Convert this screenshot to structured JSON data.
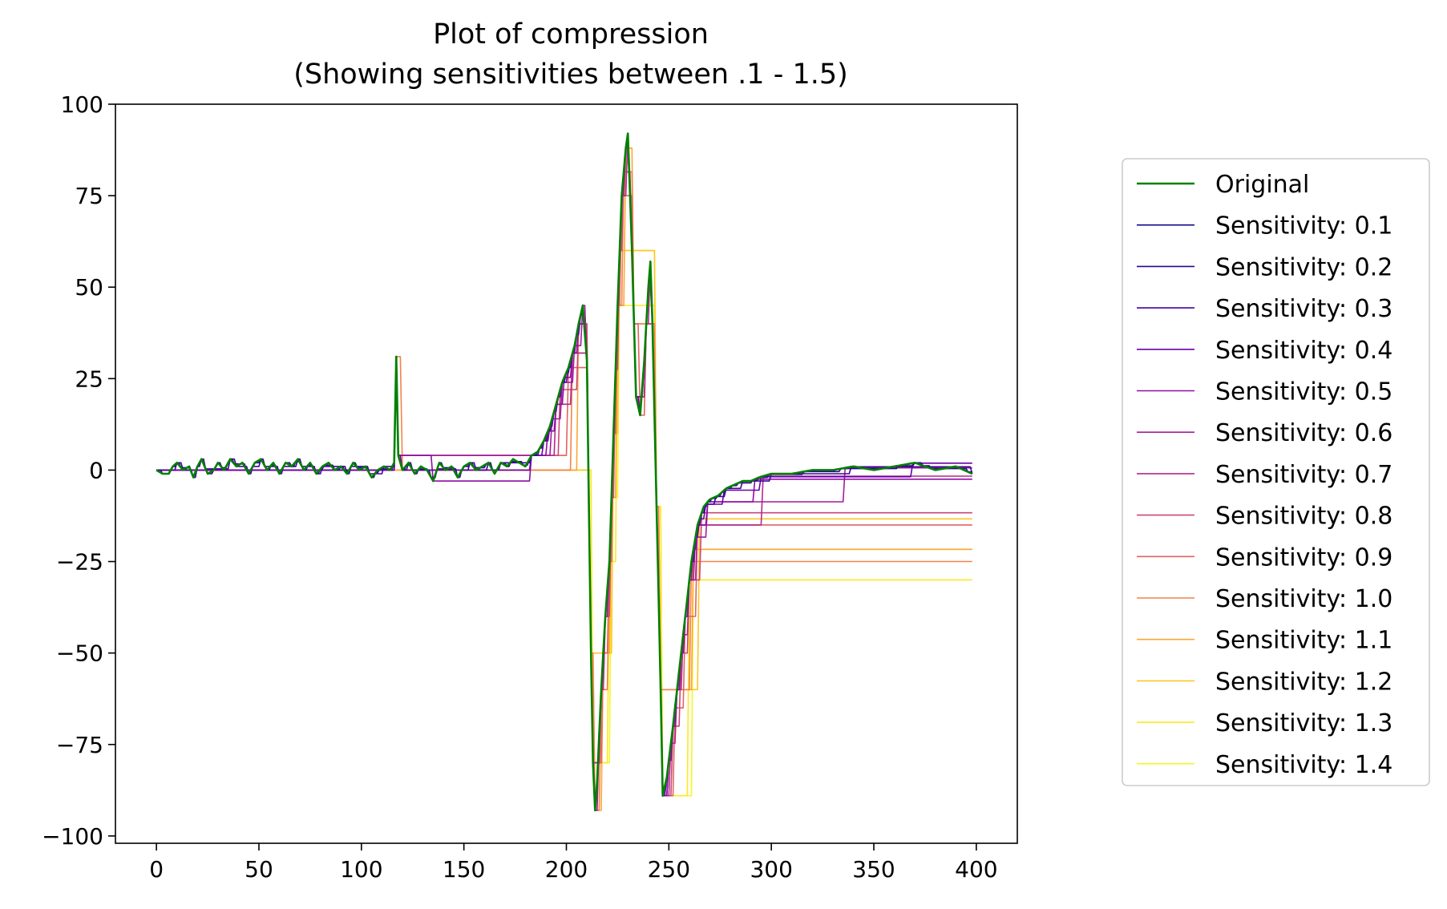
{
  "chart_data": {
    "type": "line",
    "title": "Plot of compression",
    "subtitle": "(Showing sensitivities between .1 - 1.5)",
    "xlabel": "",
    "ylabel": "",
    "xlim": [
      -20,
      420
    ],
    "ylim": [
      -102,
      100
    ],
    "xticks": [
      0,
      50,
      100,
      150,
      200,
      250,
      300,
      350,
      400
    ],
    "yticks": [
      100,
      75,
      50,
      25,
      0,
      -25,
      -50,
      -75,
      -100
    ],
    "ytick_labels": [
      "100",
      "75",
      "50",
      "25",
      "0",
      "−25",
      "−50",
      "−75",
      "−100"
    ],
    "grid": false,
    "legend_position": "outside-right",
    "original_key_points": [
      [
        0,
        0
      ],
      [
        3,
        -1
      ],
      [
        6,
        -1
      ],
      [
        8,
        1
      ],
      [
        10,
        2
      ],
      [
        13,
        0
      ],
      [
        16,
        1
      ],
      [
        18,
        -2
      ],
      [
        20,
        1
      ],
      [
        22,
        3
      ],
      [
        25,
        -1
      ],
      [
        28,
        0
      ],
      [
        30,
        2
      ],
      [
        33,
        0
      ],
      [
        36,
        3
      ],
      [
        39,
        1
      ],
      [
        42,
        2
      ],
      [
        45,
        -1
      ],
      [
        48,
        2
      ],
      [
        51,
        3
      ],
      [
        54,
        0
      ],
      [
        57,
        2
      ],
      [
        60,
        -1
      ],
      [
        63,
        2
      ],
      [
        66,
        1
      ],
      [
        69,
        3
      ],
      [
        72,
        0
      ],
      [
        75,
        2
      ],
      [
        78,
        -1
      ],
      [
        81,
        1
      ],
      [
        84,
        2
      ],
      [
        87,
        0
      ],
      [
        90,
        1
      ],
      [
        93,
        -1
      ],
      [
        96,
        2
      ],
      [
        99,
        0
      ],
      [
        102,
        1
      ],
      [
        105,
        -2
      ],
      [
        108,
        0
      ],
      [
        111,
        1
      ],
      [
        114,
        0
      ],
      [
        116,
        2
      ],
      [
        117,
        31
      ],
      [
        118,
        4
      ],
      [
        120,
        0
      ],
      [
        123,
        2
      ],
      [
        126,
        -1
      ],
      [
        129,
        1
      ],
      [
        132,
        0
      ],
      [
        135,
        -3
      ],
      [
        138,
        2
      ],
      [
        141,
        0
      ],
      [
        144,
        1
      ],
      [
        147,
        -2
      ],
      [
        150,
        1
      ],
      [
        153,
        2
      ],
      [
        156,
        0
      ],
      [
        159,
        1
      ],
      [
        162,
        2
      ],
      [
        165,
        -1
      ],
      [
        168,
        2
      ],
      [
        171,
        1
      ],
      [
        174,
        3
      ],
      [
        177,
        2
      ],
      [
        180,
        1
      ],
      [
        183,
        4
      ],
      [
        186,
        5
      ],
      [
        189,
        8
      ],
      [
        192,
        12
      ],
      [
        195,
        18
      ],
      [
        198,
        24
      ],
      [
        201,
        28
      ],
      [
        204,
        34
      ],
      [
        206,
        40
      ],
      [
        208,
        45
      ],
      [
        210,
        30
      ],
      [
        211,
        -10
      ],
      [
        212,
        -50
      ],
      [
        213,
        -80
      ],
      [
        214,
        -93
      ],
      [
        215,
        -85
      ],
      [
        217,
        -60
      ],
      [
        219,
        -40
      ],
      [
        221,
        -25
      ],
      [
        223,
        10
      ],
      [
        225,
        45
      ],
      [
        227,
        75
      ],
      [
        229,
        88
      ],
      [
        230,
        92
      ],
      [
        232,
        60
      ],
      [
        234,
        20
      ],
      [
        236,
        15
      ],
      [
        238,
        30
      ],
      [
        240,
        50
      ],
      [
        241,
        57
      ],
      [
        242,
        40
      ],
      [
        244,
        -10
      ],
      [
        246,
        -60
      ],
      [
        247,
        -89
      ],
      [
        249,
        -84
      ],
      [
        252,
        -70
      ],
      [
        255,
        -55
      ],
      [
        258,
        -40
      ],
      [
        261,
        -25
      ],
      [
        264,
        -15
      ],
      [
        267,
        -10
      ],
      [
        270,
        -8
      ],
      [
        274,
        -7
      ],
      [
        278,
        -5
      ],
      [
        282,
        -4
      ],
      [
        286,
        -3
      ],
      [
        290,
        -3
      ],
      [
        294,
        -2
      ],
      [
        300,
        -1
      ],
      [
        310,
        -1
      ],
      [
        320,
        0
      ],
      [
        330,
        0
      ],
      [
        340,
        1
      ],
      [
        350,
        0
      ],
      [
        360,
        1
      ],
      [
        370,
        2
      ],
      [
        380,
        0
      ],
      [
        390,
        1
      ],
      [
        398,
        -1
      ]
    ],
    "series": [
      {
        "name": "Original",
        "color": "#008000"
      },
      {
        "name": "Sensitivity: 0.1",
        "color": "#0d0887"
      },
      {
        "name": "Sensitivity: 0.2",
        "color": "#2c0594"
      },
      {
        "name": "Sensitivity: 0.3",
        "color": "#43039e"
      },
      {
        "name": "Sensitivity: 0.4",
        "color": "#6a00a8"
      },
      {
        "name": "Sensitivity: 0.5",
        "color": "#8f0da4"
      },
      {
        "name": "Sensitivity: 0.6",
        "color": "#a21d9a"
      },
      {
        "name": "Sensitivity: 0.7",
        "color": "#b12a90"
      },
      {
        "name": "Sensitivity: 0.8",
        "color": "#cc4778"
      },
      {
        "name": "Sensitivity: 0.9",
        "color": "#e16462"
      },
      {
        "name": "Sensitivity: 1.0",
        "color": "#f2844b"
      },
      {
        "name": "Sensitivity: 1.1",
        "color": "#fca636"
      },
      {
        "name": "Sensitivity: 1.2",
        "color": "#fcc726"
      },
      {
        "name": "Sensitivity: 1.3",
        "color": "#fde825"
      },
      {
        "name": "Sensitivity: 1.4",
        "color": "#f0f921"
      }
    ]
  }
}
